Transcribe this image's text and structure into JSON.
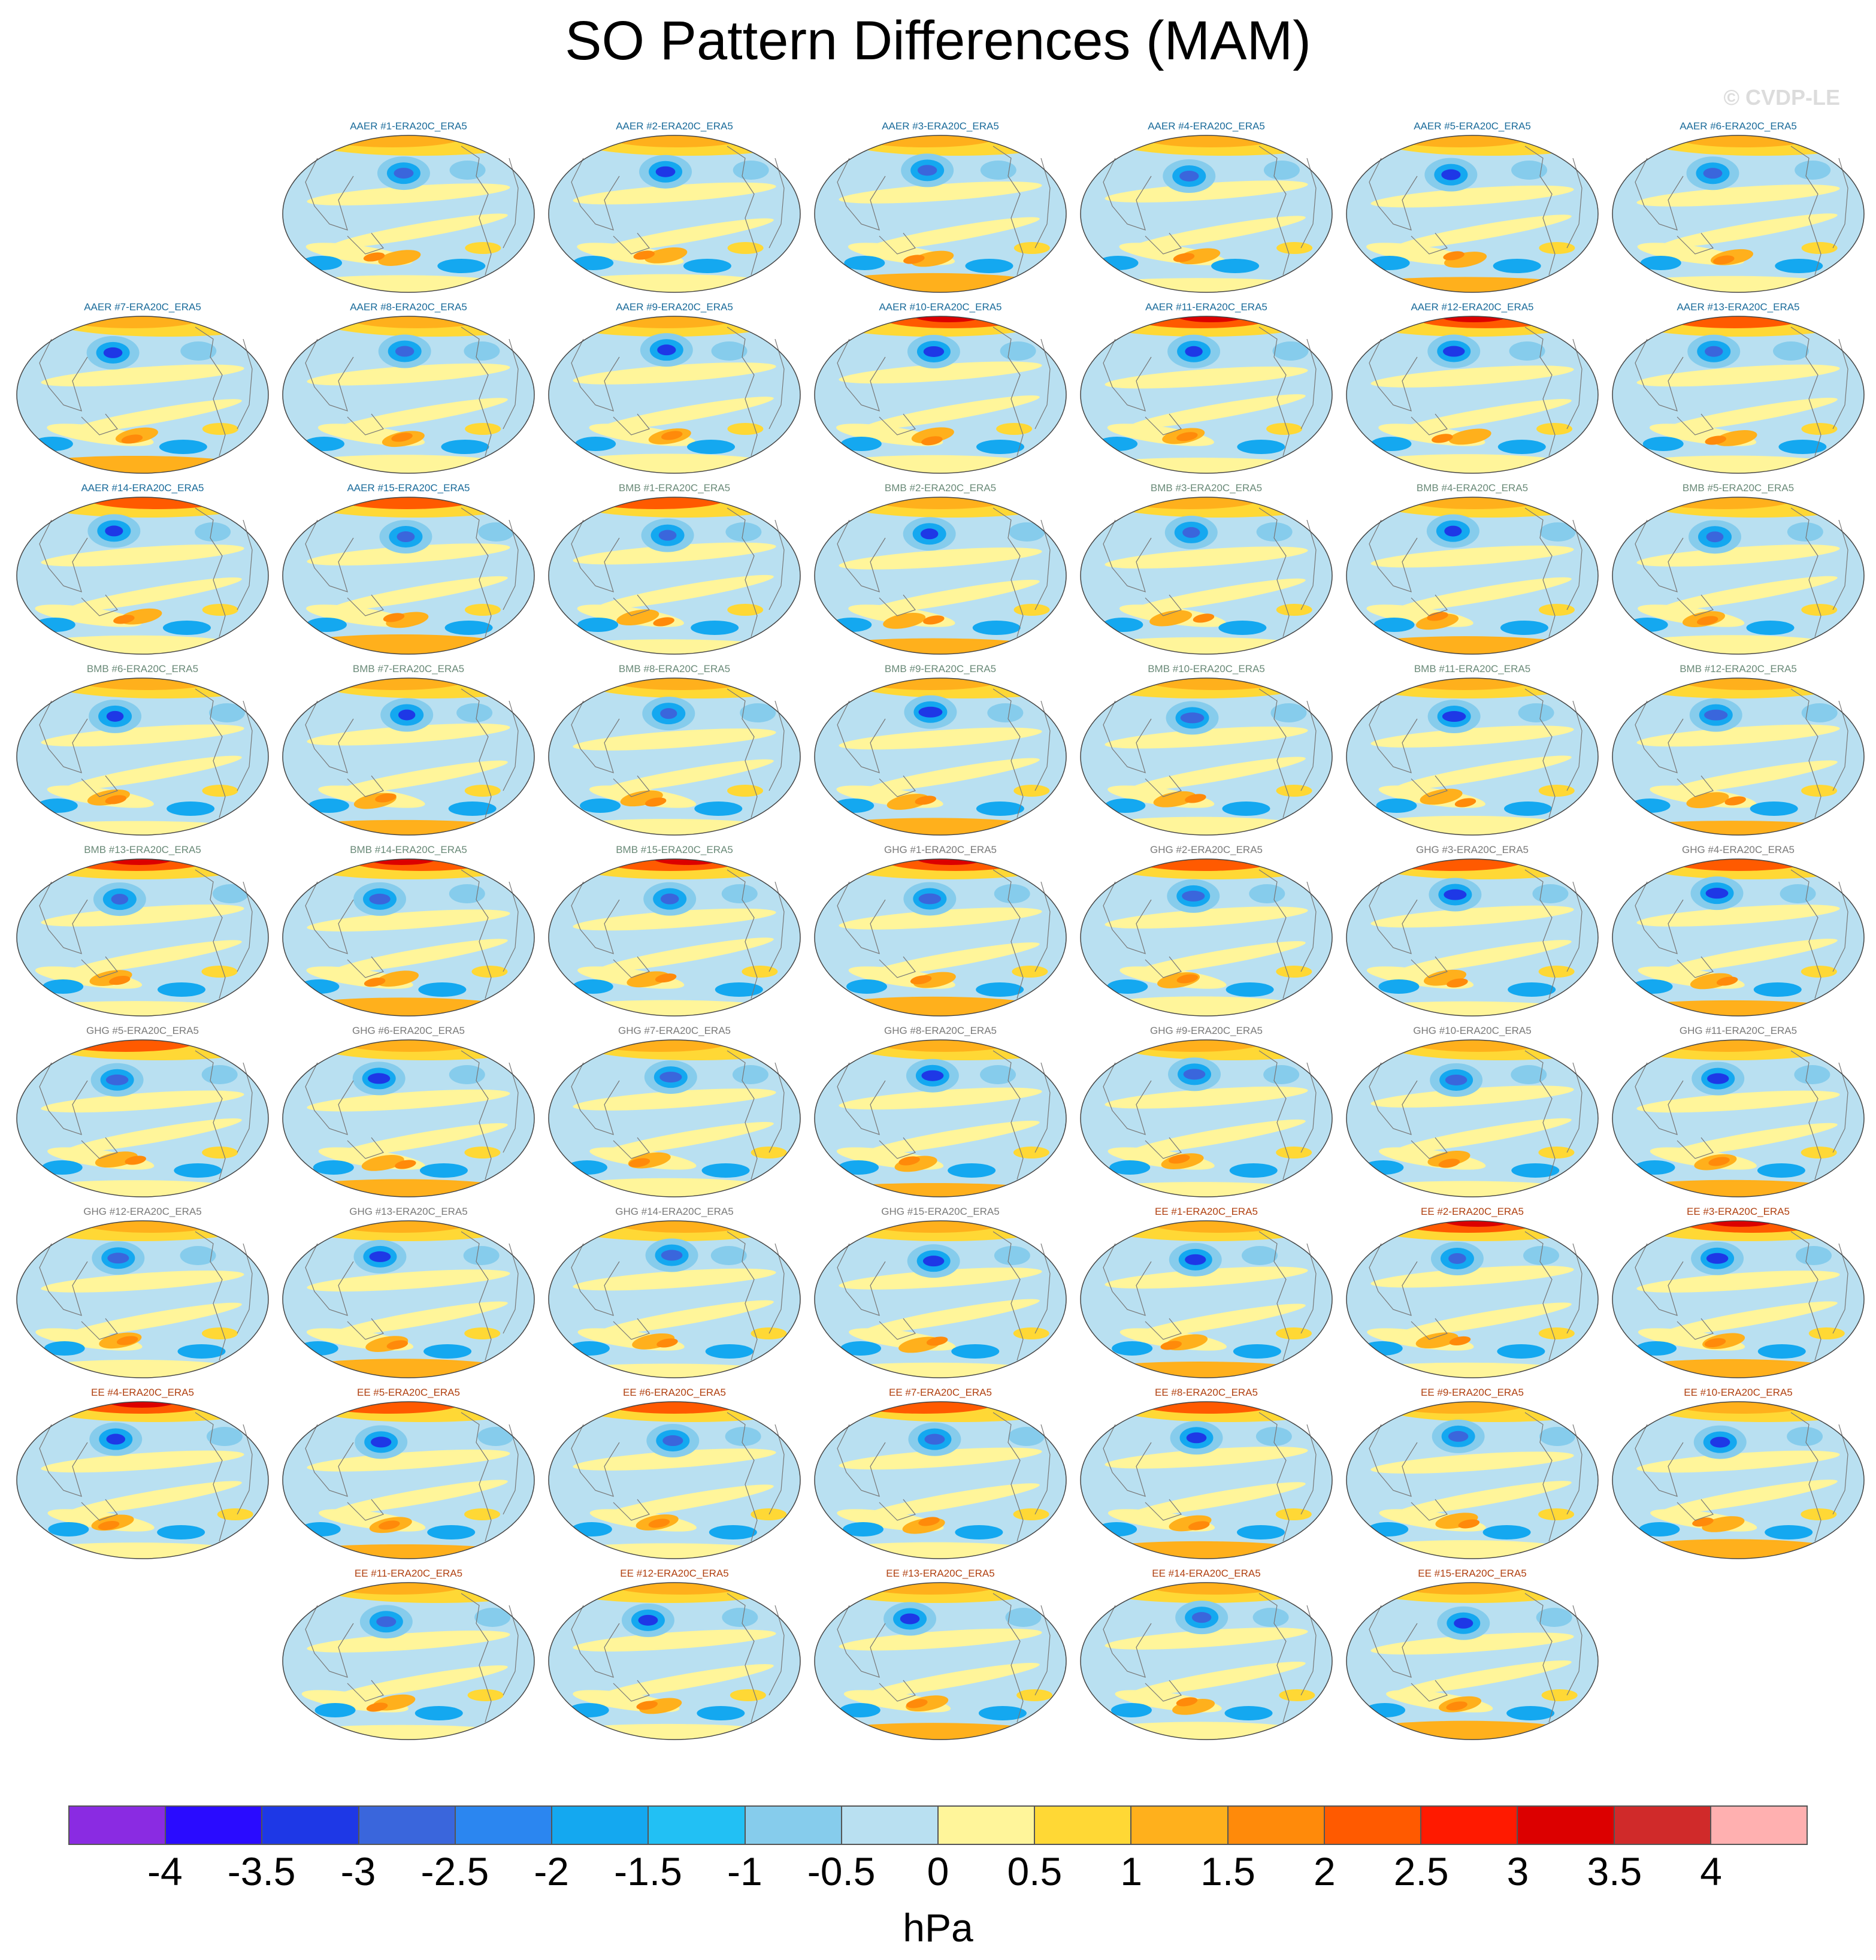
{
  "title": "SO Pattern Differences (MAM)",
  "watermark": "© CVDP-LE",
  "colors": {
    "ocean_neutral": "#b9e0f1",
    "land_outline": "#777777",
    "group_label": {
      "AAER": "#1a6b9a",
      "BMB": "#6a8a78",
      "GHG": "#7a7a7a",
      "EE": "#b04010"
    }
  },
  "panels": [
    {
      "label": "AAER #1-ERA20C_ERA5",
      "group": "AAER"
    },
    {
      "label": "AAER #2-ERA20C_ERA5",
      "group": "AAER"
    },
    {
      "label": "AAER #3-ERA20C_ERA5",
      "group": "AAER"
    },
    {
      "label": "AAER #4-ERA20C_ERA5",
      "group": "AAER"
    },
    {
      "label": "AAER #5-ERA20C_ERA5",
      "group": "AAER"
    },
    {
      "label": "AAER #6-ERA20C_ERA5",
      "group": "AAER"
    },
    {
      "label": "AAER #7-ERA20C_ERA5",
      "group": "AAER"
    },
    {
      "label": "AAER #8-ERA20C_ERA5",
      "group": "AAER"
    },
    {
      "label": "AAER #9-ERA20C_ERA5",
      "group": "AAER"
    },
    {
      "label": "AAER #10-ERA20C_ERA5",
      "group": "AAER"
    },
    {
      "label": "AAER #11-ERA20C_ERA5",
      "group": "AAER"
    },
    {
      "label": "AAER #12-ERA20C_ERA5",
      "group": "AAER"
    },
    {
      "label": "AAER #13-ERA20C_ERA5",
      "group": "AAER"
    },
    {
      "label": "AAER #14-ERA20C_ERA5",
      "group": "AAER"
    },
    {
      "label": "AAER #15-ERA20C_ERA5",
      "group": "AAER"
    },
    {
      "label": "BMB #1-ERA20C_ERA5",
      "group": "BMB"
    },
    {
      "label": "BMB #2-ERA20C_ERA5",
      "group": "BMB"
    },
    {
      "label": "BMB #3-ERA20C_ERA5",
      "group": "BMB"
    },
    {
      "label": "BMB #4-ERA20C_ERA5",
      "group": "BMB"
    },
    {
      "label": "BMB #5-ERA20C_ERA5",
      "group": "BMB"
    },
    {
      "label": "BMB #6-ERA20C_ERA5",
      "group": "BMB"
    },
    {
      "label": "BMB #7-ERA20C_ERA5",
      "group": "BMB"
    },
    {
      "label": "BMB #8-ERA20C_ERA5",
      "group": "BMB"
    },
    {
      "label": "BMB #9-ERA20C_ERA5",
      "group": "BMB"
    },
    {
      "label": "BMB #10-ERA20C_ERA5",
      "group": "BMB"
    },
    {
      "label": "BMB #11-ERA20C_ERA5",
      "group": "BMB"
    },
    {
      "label": "BMB #12-ERA20C_ERA5",
      "group": "BMB"
    },
    {
      "label": "BMB #13-ERA20C_ERA5",
      "group": "BMB"
    },
    {
      "label": "BMB #14-ERA20C_ERA5",
      "group": "BMB"
    },
    {
      "label": "BMB #15-ERA20C_ERA5",
      "group": "BMB"
    },
    {
      "label": "GHG #1-ERA20C_ERA5",
      "group": "GHG"
    },
    {
      "label": "GHG #2-ERA20C_ERA5",
      "group": "GHG"
    },
    {
      "label": "GHG #3-ERA20C_ERA5",
      "group": "GHG"
    },
    {
      "label": "GHG #4-ERA20C_ERA5",
      "group": "GHG"
    },
    {
      "label": "GHG #5-ERA20C_ERA5",
      "group": "GHG"
    },
    {
      "label": "GHG #6-ERA20C_ERA5",
      "group": "GHG"
    },
    {
      "label": "GHG #7-ERA20C_ERA5",
      "group": "GHG"
    },
    {
      "label": "GHG #8-ERA20C_ERA5",
      "group": "GHG"
    },
    {
      "label": "GHG #9-ERA20C_ERA5",
      "group": "GHG"
    },
    {
      "label": "GHG #10-ERA20C_ERA5",
      "group": "GHG"
    },
    {
      "label": "GHG #11-ERA20C_ERA5",
      "group": "GHG"
    },
    {
      "label": "GHG #12-ERA20C_ERA5",
      "group": "GHG"
    },
    {
      "label": "GHG #13-ERA20C_ERA5",
      "group": "GHG"
    },
    {
      "label": "GHG #14-ERA20C_ERA5",
      "group": "GHG"
    },
    {
      "label": "GHG #15-ERA20C_ERA5",
      "group": "GHG"
    },
    {
      "label": "EE #1-ERA20C_ERA5",
      "group": "EE"
    },
    {
      "label": "EE #2-ERA20C_ERA5",
      "group": "EE"
    },
    {
      "label": "EE #3-ERA20C_ERA5",
      "group": "EE"
    },
    {
      "label": "EE #4-ERA20C_ERA5",
      "group": "EE"
    },
    {
      "label": "EE #5-ERA20C_ERA5",
      "group": "EE"
    },
    {
      "label": "EE #6-ERA20C_ERA5",
      "group": "EE"
    },
    {
      "label": "EE #7-ERA20C_ERA5",
      "group": "EE"
    },
    {
      "label": "EE #8-ERA20C_ERA5",
      "group": "EE"
    },
    {
      "label": "EE #9-ERA20C_ERA5",
      "group": "EE"
    },
    {
      "label": "EE #10-ERA20C_ERA5",
      "group": "EE"
    },
    {
      "label": "EE #11-ERA20C_ERA5",
      "group": "EE"
    },
    {
      "label": "EE #12-ERA20C_ERA5",
      "group": "EE"
    },
    {
      "label": "EE #13-ERA20C_ERA5",
      "group": "EE"
    },
    {
      "label": "EE #14-ERA20C_ERA5",
      "group": "EE"
    },
    {
      "label": "EE #15-ERA20C_ERA5",
      "group": "EE"
    }
  ],
  "colorbar": {
    "colors": [
      "#8a2be2",
      "#2a0bff",
      "#1e38e6",
      "#3a66dc",
      "#2b86f0",
      "#14a8f0",
      "#22c0f4",
      "#86ccec",
      "#b9e0f1",
      "#fff59a",
      "#ffd835",
      "#ffb01c",
      "#ff8a0a",
      "#ff5a00",
      "#ff1a00",
      "#dc0000",
      "#d02a2a",
      "#ffb0b0"
    ],
    "tick_labels": [
      "-4",
      "-3.5",
      "-3",
      "-2.5",
      "-2",
      "-1.5",
      "-1",
      "-0.5",
      "0",
      "0.5",
      "1",
      "1.5",
      "2",
      "2.5",
      "3",
      "3.5",
      "4"
    ],
    "units": "hPa"
  }
}
